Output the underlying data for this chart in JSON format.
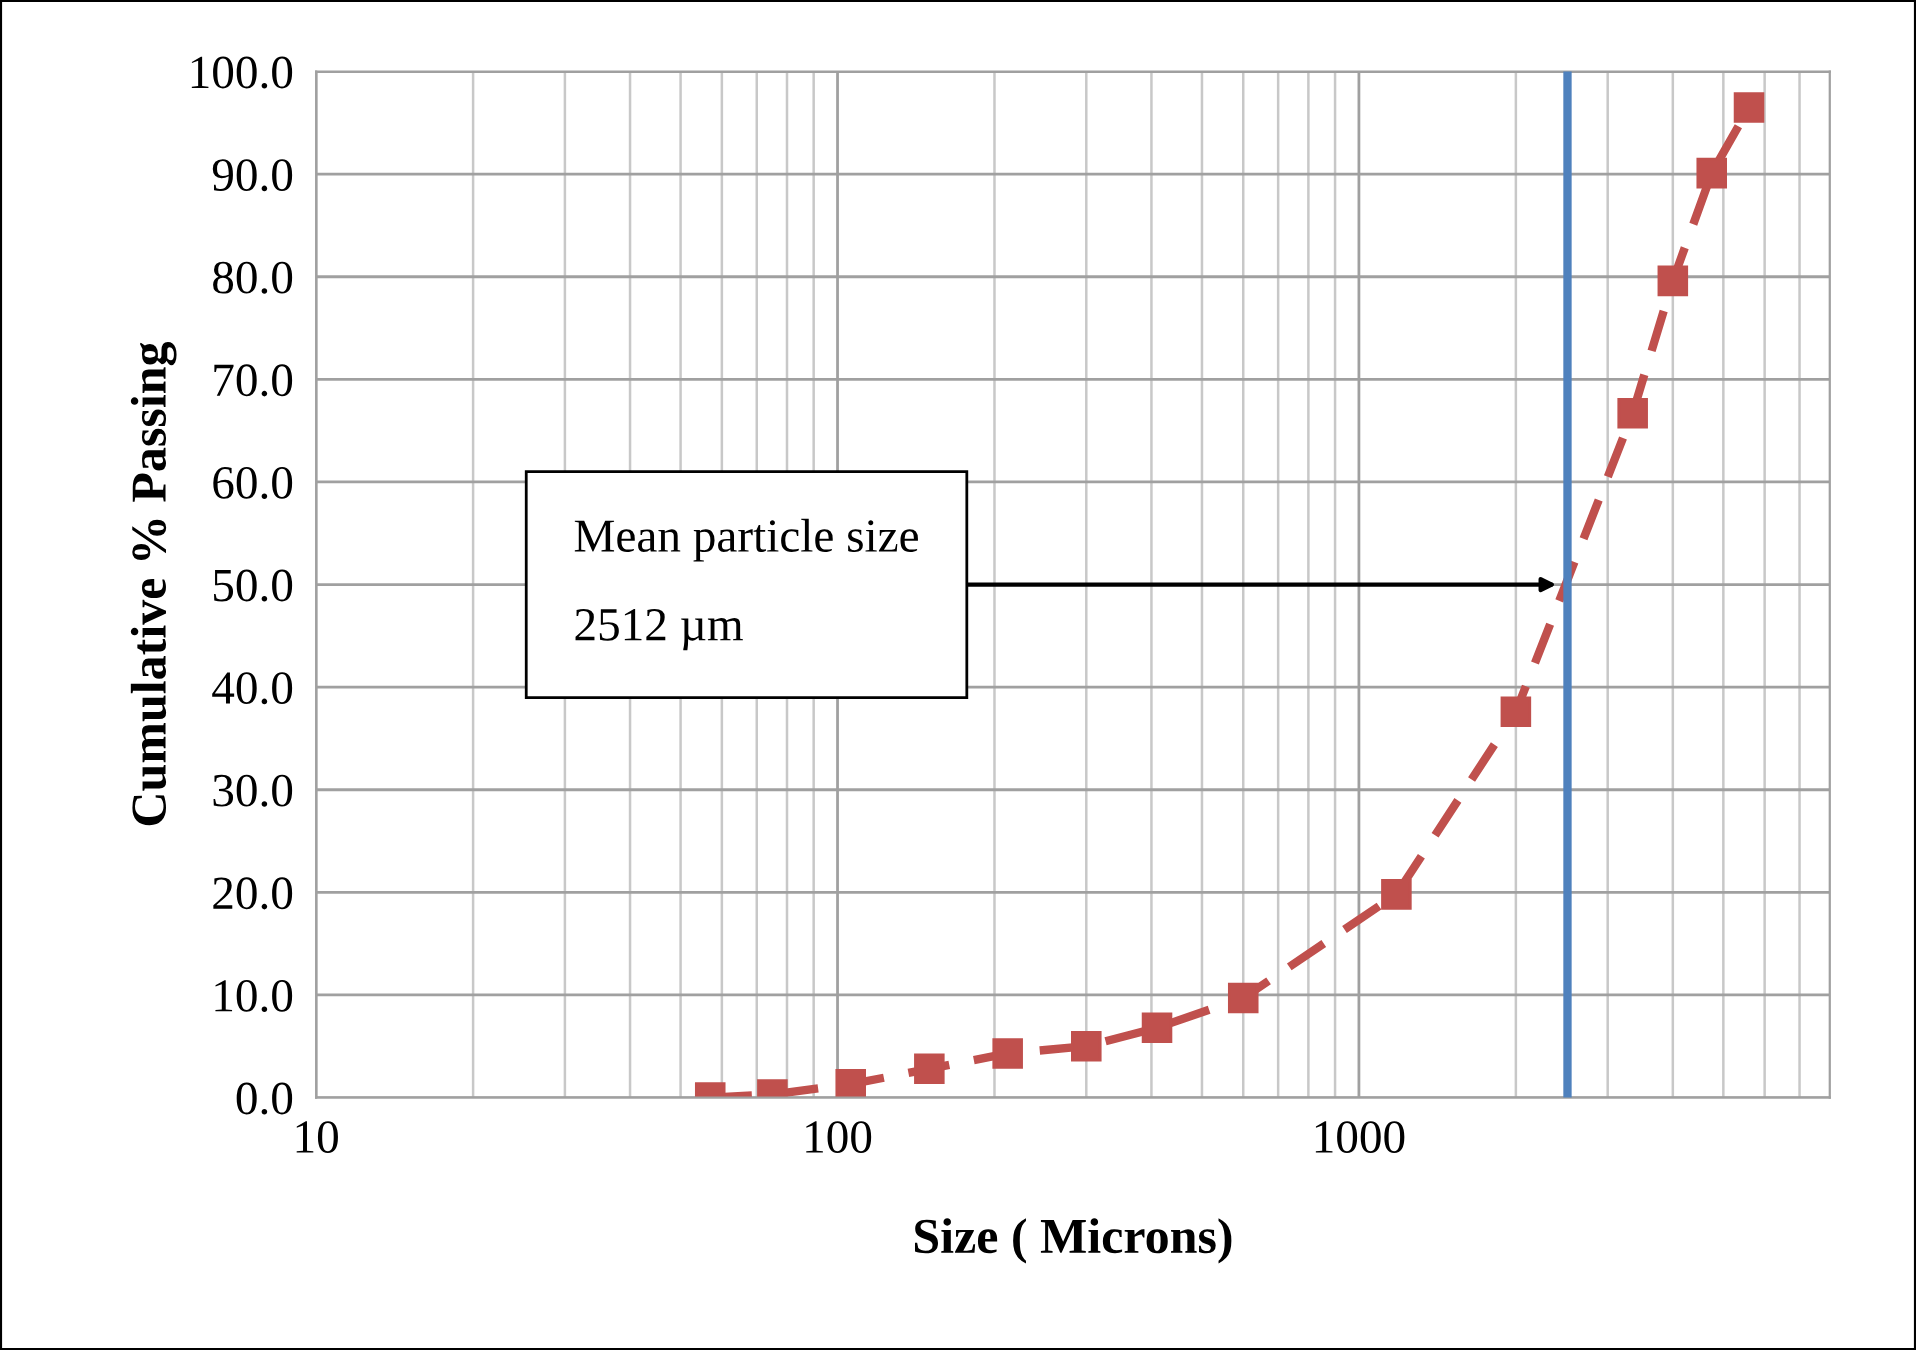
{
  "chart_data": {
    "type": "line",
    "xlabel": "Size ( Microns)",
    "ylabel": "Cumulative % Passing",
    "log": "x",
    "xlim": [
      10,
      8000
    ],
    "xticks": [
      10,
      100,
      1000
    ],
    "ylim": [
      0,
      100
    ],
    "yticks": [
      {
        "value": 0,
        "label": "0.0"
      },
      {
        "value": 10,
        "label": "10.0"
      },
      {
        "value": 20,
        "label": "20.0"
      },
      {
        "value": 30,
        "label": "30.0"
      },
      {
        "value": 40,
        "label": "40.0"
      },
      {
        "value": 50,
        "label": "50.0"
      },
      {
        "value": 60,
        "label": "60.0"
      },
      {
        "value": 70,
        "label": "70.0"
      },
      {
        "value": 80,
        "label": "80.0"
      },
      {
        "value": 90,
        "label": "90.0"
      },
      {
        "value": 100,
        "label": "100.0"
      }
    ],
    "grid": true,
    "marker": "square",
    "line_style": "dashed",
    "legend": false,
    "series": [
      {
        "color": "#c0504d",
        "x": [
          57,
          75,
          106,
          150,
          212,
          300,
          410,
          600,
          1180,
          2000,
          3350,
          4000,
          4750,
          5600
        ],
        "values": [
          0.0,
          0.3,
          1.3,
          2.8,
          4.3,
          5.0,
          6.8,
          9.7,
          19.8,
          37.6,
          66.7,
          79.6,
          90.1,
          96.5
        ]
      }
    ],
    "ref_lines": [
      {
        "axis": "x",
        "value": 2512,
        "color": "#4f81bd"
      }
    ],
    "annotations": [
      "Mean particle size\n2512 µm"
    ]
  }
}
